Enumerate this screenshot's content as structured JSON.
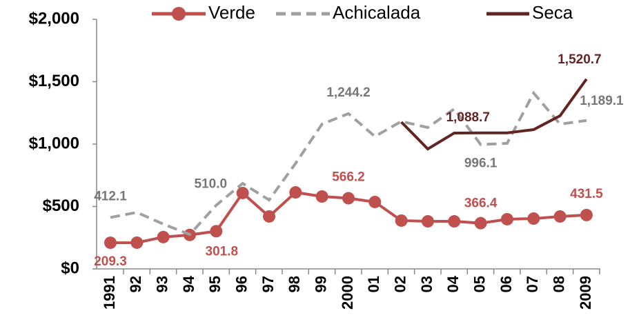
{
  "chart_data": {
    "type": "line",
    "categories": [
      "1991",
      "92",
      "93",
      "94",
      "95",
      "96",
      "97",
      "98",
      "99",
      "2000",
      "01",
      "02",
      "03",
      "04",
      "05",
      "06",
      "07",
      "08",
      "2009"
    ],
    "ylim": [
      0,
      2000
    ],
    "yticks": [
      {
        "value": 0,
        "label": "$0"
      },
      {
        "value": 500,
        "label": "$500"
      },
      {
        "value": 1000,
        "label": "$1,000"
      },
      {
        "value": 1500,
        "label": "$1,500"
      },
      {
        "value": 2000,
        "label": "$2,000"
      }
    ],
    "legend": "top",
    "series": [
      {
        "name": "Verde",
        "color": "#c0504d",
        "style": "solid-marker",
        "values": [
          209.3,
          210,
          255,
          272,
          301.8,
          608,
          420,
          613,
          580,
          566.2,
          536,
          387,
          381,
          381,
          366.4,
          398,
          403,
          420,
          431.5
        ],
        "value_labels": [
          "209.3",
          null,
          null,
          null,
          "301.8",
          null,
          null,
          null,
          null,
          "566.2",
          null,
          null,
          null,
          null,
          "366.4",
          null,
          null,
          null,
          "431.5"
        ]
      },
      {
        "name": "Achicalada",
        "color": "#a0a0a0",
        "style": "dashed",
        "values": [
          412.1,
          453,
          359,
          276,
          510.0,
          685,
          552,
          845,
          1160,
          1244.2,
          1061,
          1182,
          1133,
          1282,
          996.1,
          1006,
          1409,
          1160,
          1189.1
        ],
        "value_labels": [
          "412.1",
          null,
          null,
          null,
          "510.0",
          null,
          null,
          null,
          null,
          "1,244.2",
          null,
          null,
          null,
          null,
          "996.1",
          null,
          null,
          null,
          "1,189.1"
        ]
      },
      {
        "name": "Seca",
        "color": "#632523",
        "style": "solid",
        "values": [
          null,
          null,
          null,
          null,
          null,
          null,
          null,
          null,
          null,
          null,
          null,
          1177,
          961,
          1088.7,
          1090,
          1090,
          1116,
          1227,
          1520.7
        ],
        "value_labels": [
          null,
          null,
          null,
          null,
          null,
          null,
          null,
          null,
          null,
          null,
          null,
          null,
          null,
          "1,088.7",
          null,
          null,
          null,
          null,
          "1,520.7"
        ]
      }
    ]
  }
}
